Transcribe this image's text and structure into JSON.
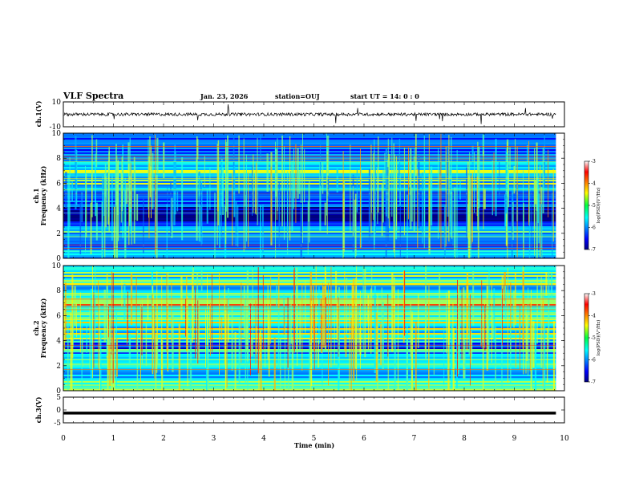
{
  "header": {
    "title": "VLF Spectra",
    "date": "Jan. 23, 2026",
    "station": "station=OUJ",
    "start_ut": "start  UT =   14: 0  : 0"
  },
  "chart_data": [
    {
      "id": "ch1-waveform",
      "type": "line",
      "ylabel": "ch.1(V)",
      "ylim": [
        -10,
        10
      ],
      "yticks": [
        "10",
        "-10"
      ],
      "baseline_v": 0,
      "noise_amplitude_v": 1.2
    },
    {
      "id": "ch1-spectrogram",
      "type": "heatmap",
      "ylabel_line1": "ch.1",
      "ylabel_line2": "Frequency (kHz)",
      "ylim": [
        0,
        10
      ],
      "yticks": [
        "0",
        "2",
        "4",
        "6",
        "8",
        "10"
      ],
      "colorbar": {
        "label": "log(PSD)(V²/Hz)",
        "range": [
          -7,
          -3
        ],
        "ticks": [
          "-3",
          "-4",
          "-5",
          "-6",
          "-7"
        ]
      }
    },
    {
      "id": "ch2-spectrogram",
      "type": "heatmap",
      "ylabel_line1": "ch.2",
      "ylabel_line2": "Frequency (kHz)",
      "ylim": [
        0,
        10
      ],
      "yticks": [
        "0",
        "2",
        "4",
        "6",
        "8",
        "10"
      ],
      "colorbar": {
        "label": "log(PSD)(V²/Hz)",
        "range": [
          -7,
          -3
        ],
        "ticks": [
          "-3",
          "-4",
          "-5",
          "-6",
          "-7"
        ]
      }
    },
    {
      "id": "ch3-waveform",
      "type": "line",
      "ylabel": "ch.3(V)",
      "ylim": [
        -5,
        5
      ],
      "yticks": [
        "5",
        "0",
        "-5"
      ],
      "baseline_v": -1.2
    }
  ],
  "xaxis": {
    "label": "Time (min)",
    "range": [
      0,
      10
    ],
    "data_end_min": 9.83,
    "ticks": [
      "0",
      "1",
      "2",
      "3",
      "4",
      "5",
      "6",
      "7",
      "8",
      "9",
      "10"
    ]
  }
}
